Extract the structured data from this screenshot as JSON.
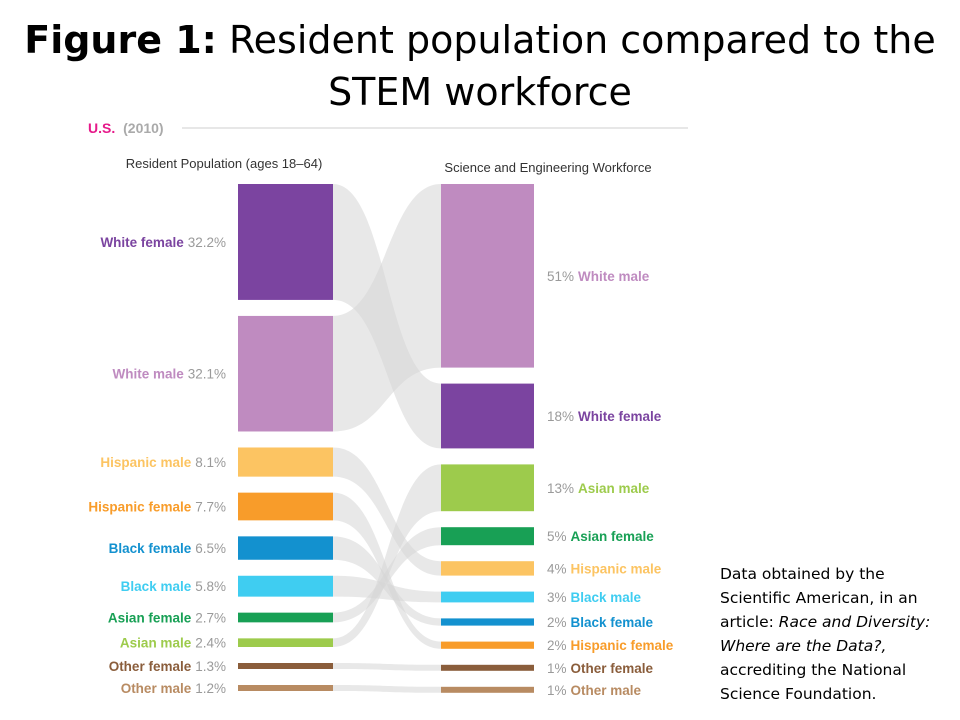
{
  "title": {
    "bold_part": "Figure 1:",
    "line1_rest": "Resident population compared to the",
    "line2": "STEM workforce"
  },
  "chart_data": {
    "type": "bar",
    "region": "U.S.",
    "year": "(2010)",
    "left_header": "Resident Population (ages 18–64)",
    "right_header": "Science and Engineering Workforce",
    "categories": [
      "White female",
      "White male",
      "Hispanic male",
      "Hispanic female",
      "Black female",
      "Black male",
      "Asian female",
      "Asian male",
      "Other female",
      "Other male"
    ],
    "colors": {
      "White female": "#7b44a0",
      "White male": "#bf8bc0",
      "Hispanic male": "#fcc462",
      "Hispanic female": "#f89c2a",
      "Black female": "#1391cf",
      "Black male": "#3fcdf1",
      "Asian female": "#18a055",
      "Asian male": "#9dcb4c",
      "Other female": "#8a5d3b",
      "Other male": "#b88b62"
    },
    "series": [
      {
        "values": [
          32.2,
          32.1,
          8.1,
          7.7,
          6.5,
          5.8,
          2.7,
          2.4,
          1.3,
          1.2
        ],
        "labels": [
          "32.2%",
          "32.1%",
          "8.1%",
          "7.7%",
          "6.5%",
          "5.8%",
          "2.7%",
          "2.4%",
          "1.3%",
          "1.2%"
        ]
      },
      {
        "order": [
          "White male",
          "White female",
          "Asian male",
          "Asian female",
          "Hispanic male",
          "Black male",
          "Black female",
          "Hispanic female",
          "Other female",
          "Other male"
        ],
        "values": [
          51,
          18,
          13,
          5,
          4,
          3,
          2,
          2,
          1,
          1
        ],
        "labels": [
          "51%",
          "18%",
          "13%",
          "5%",
          "4%",
          "3%",
          "2%",
          "2%",
          "1%",
          "1%"
        ]
      }
    ]
  },
  "note": {
    "line1": "Data obtained by the Scientific American, in an article: ",
    "article": "Race and Diversity: Where are the Data?,",
    "line2": " accrediting the National Science Foundation."
  }
}
